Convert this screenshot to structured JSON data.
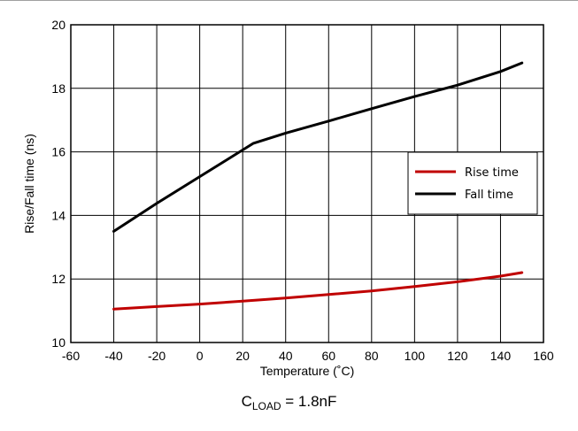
{
  "chart_data": {
    "type": "line",
    "title": "",
    "xlabel": "Temperature (˚C)",
    "ylabel": "Rise/Fall time (ns)",
    "xlim": [
      -60,
      160
    ],
    "ylim": [
      10,
      20
    ],
    "xticks": [
      -60,
      -40,
      -20,
      0,
      20,
      40,
      60,
      80,
      100,
      120,
      140,
      160
    ],
    "yticks": [
      10,
      12,
      14,
      16,
      18,
      20
    ],
    "xtick_labels": [
      "-60",
      "-40",
      "-20",
      "0",
      "20",
      "40",
      "60",
      "80",
      "100",
      "120",
      "140",
      "160"
    ],
    "ytick_labels": [
      "10",
      "12",
      "14",
      "16",
      "18",
      "20"
    ],
    "grid": true,
    "legend_position": "right",
    "series": [
      {
        "name": "Rise time",
        "color": "#c00000",
        "x": [
          -40,
          -20,
          0,
          20,
          40,
          60,
          80,
          100,
          120,
          140,
          150
        ],
        "y": [
          11.05,
          11.13,
          11.21,
          11.3,
          11.4,
          11.51,
          11.62,
          11.76,
          11.91,
          12.09,
          12.2
        ]
      },
      {
        "name": "Fall time",
        "color": "#000000",
        "x": [
          -40,
          -20,
          0,
          25,
          40,
          60,
          80,
          100,
          120,
          140,
          150
        ],
        "y": [
          13.5,
          14.38,
          15.22,
          16.27,
          16.59,
          16.97,
          17.36,
          17.74,
          18.1,
          18.53,
          18.8
        ]
      }
    ]
  },
  "caption": {
    "main": "C",
    "subscript": "LOAD",
    "value": " = 1.8nF"
  }
}
